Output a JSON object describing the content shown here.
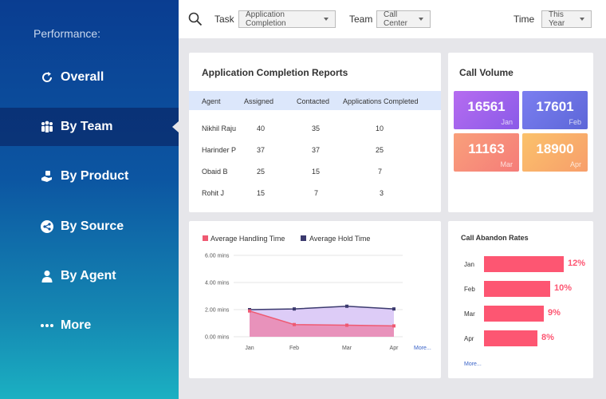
{
  "sidebar": {
    "title": "Performance:",
    "items": [
      {
        "label": "Overall",
        "icon": "refresh-icon",
        "active": false
      },
      {
        "label": "By Team",
        "icon": "team-icon",
        "active": true
      },
      {
        "label": "By Product",
        "icon": "hand-product-icon",
        "active": false
      },
      {
        "label": "By Source",
        "icon": "share-icon",
        "active": false
      },
      {
        "label": "By Agent",
        "icon": "agent-icon",
        "active": false
      },
      {
        "label": "More",
        "icon": "more-dots-icon",
        "active": false
      }
    ]
  },
  "filters": {
    "task_label": "Task",
    "task_value": "Application Completion",
    "team_label": "Team",
    "team_value": "Call Center",
    "time_label": "Time",
    "time_value": "This Year"
  },
  "reports": {
    "title": "Application Completion Reports",
    "columns": [
      "Agent",
      "Assigned",
      "Contacted",
      "Applications Completed"
    ],
    "rows": [
      [
        "Nikhil Raju",
        "40",
        "35",
        "10"
      ],
      [
        "Harinder P",
        "37",
        "37",
        "25"
      ],
      [
        "Obaid B",
        "25",
        "15",
        "7"
      ],
      [
        "Rohit J",
        "15",
        "7",
        "3"
      ]
    ]
  },
  "call_volume": {
    "title": "Call Volume",
    "tiles": [
      {
        "value": "16561",
        "month": "Jan"
      },
      {
        "value": "17601",
        "month": "Feb"
      },
      {
        "value": "11163",
        "month": "Mar"
      },
      {
        "value": "18900",
        "month": "Apr"
      }
    ]
  },
  "handling_chart": {
    "more_label": "More...",
    "colors": {
      "handling": "#ef5a72",
      "hold": "#3b3a6e",
      "handling_fill": "#e88eb7",
      "hold_fill": "#d9c6f6"
    }
  },
  "abandon": {
    "title": "Call Abandon Rates",
    "more_label": "More...",
    "items": [
      {
        "month": "Jan",
        "value": "12%"
      },
      {
        "month": "Feb",
        "value": "10%"
      },
      {
        "month": "Mar",
        "value": "9%"
      },
      {
        "month": "Apr",
        "value": "8%"
      }
    ],
    "color": "#fd5672"
  },
  "chart_data": {
    "type": "area",
    "categories": [
      "Jan",
      "Feb",
      "Mar",
      "Apr"
    ],
    "series": [
      {
        "name": "Average Handling Time",
        "values": [
          1.9,
          0.9,
          0.85,
          0.8
        ]
      },
      {
        "name": "Average Hold Time",
        "values": [
          2.0,
          2.05,
          2.25,
          2.05
        ]
      }
    ],
    "yticks": [
      "6.00 mins",
      "4.00 mins",
      "2.00 mins",
      "0.00 mins"
    ],
    "ylim": [
      0,
      6
    ],
    "legend": "top-left",
    "grid": true
  }
}
